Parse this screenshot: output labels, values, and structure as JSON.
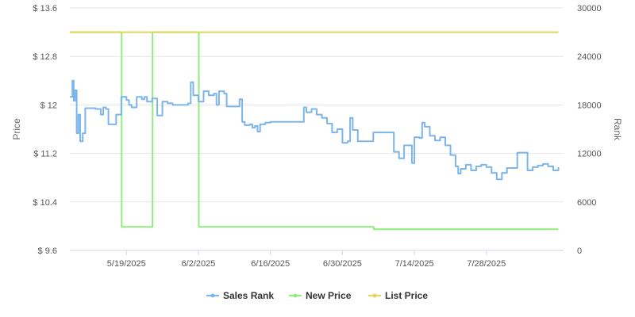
{
  "chart_data": {
    "type": "line",
    "x_type": "date",
    "x_ticks": [
      "5/19/2025",
      "6/2/2025",
      "6/16/2025",
      "6/30/2025",
      "7/14/2025",
      "7/28/2025"
    ],
    "x_range": [
      "2025-05-08",
      "2025-08-12"
    ],
    "y_left": {
      "title": "Price",
      "ticks": [
        "$ 9.6",
        "$ 10.4",
        "$ 11.2",
        "$ 12",
        "$ 12.8",
        "$ 13.6"
      ],
      "tick_values": [
        9.6,
        10.4,
        11.2,
        12,
        12.8,
        13.6
      ],
      "range": [
        9.6,
        13.6
      ]
    },
    "y_right": {
      "title": "Rank",
      "ticks": [
        "0",
        "6000",
        "12000",
        "18000",
        "24000",
        "30000"
      ],
      "tick_values": [
        0,
        6000,
        12000,
        18000,
        24000,
        30000
      ],
      "range": [
        0,
        30000
      ]
    },
    "grid": true,
    "legend_position": "bottom-center",
    "series": [
      {
        "name": "Sales Rank",
        "axis": "right",
        "color": "#7cb5ec",
        "step": true,
        "points": [
          [
            "2025-05-08",
            19000
          ],
          [
            "2025-05-08T12",
            21000
          ],
          [
            "2025-05-08T18",
            18500
          ],
          [
            "2025-05-09",
            19800
          ],
          [
            "2025-05-09T08",
            14500
          ],
          [
            "2025-05-09T16",
            16800
          ],
          [
            "2025-05-10",
            13500
          ],
          [
            "2025-05-10T12",
            14500
          ],
          [
            "2025-05-11",
            17600
          ],
          [
            "2025-05-13",
            17500
          ],
          [
            "2025-05-14",
            16800
          ],
          [
            "2025-05-14T12",
            17700
          ],
          [
            "2025-05-15",
            17500
          ],
          [
            "2025-05-15T12",
            15600
          ],
          [
            "2025-05-16",
            15600
          ],
          [
            "2025-05-17",
            16800
          ],
          [
            "2025-05-18",
            19000
          ],
          [
            "2025-05-19",
            18600
          ],
          [
            "2025-05-19T12",
            18000
          ],
          [
            "2025-05-20",
            17700
          ],
          [
            "2025-05-21",
            19000
          ],
          [
            "2025-05-22",
            18700
          ],
          [
            "2025-05-22T12",
            19000
          ],
          [
            "2025-05-23",
            18400
          ],
          [
            "2025-05-24",
            18800
          ],
          [
            "2025-05-25",
            16700
          ],
          [
            "2025-05-26",
            18400
          ],
          [
            "2025-05-27",
            18200
          ],
          [
            "2025-05-28",
            18000
          ],
          [
            "2025-05-30",
            18000
          ],
          [
            "2025-05-31",
            18200
          ],
          [
            "2025-05-31T12",
            20800
          ],
          [
            "2025-06-01",
            19200
          ],
          [
            "2025-06-02",
            18400
          ],
          [
            "2025-06-03",
            19700
          ],
          [
            "2025-06-04",
            19200
          ],
          [
            "2025-06-05",
            19400
          ],
          [
            "2025-06-05T12",
            18000
          ],
          [
            "2025-06-06",
            19700
          ],
          [
            "2025-06-07",
            19400
          ],
          [
            "2025-06-07T12",
            17800
          ],
          [
            "2025-06-10",
            18700
          ],
          [
            "2025-06-10T12",
            15900
          ],
          [
            "2025-06-11",
            15500
          ],
          [
            "2025-06-12",
            15600
          ],
          [
            "2025-06-12T12",
            15200
          ],
          [
            "2025-06-13",
            15400
          ],
          [
            "2025-06-13T12",
            14700
          ],
          [
            "2025-06-14",
            15600
          ],
          [
            "2025-06-15",
            15800
          ],
          [
            "2025-06-16",
            15900
          ],
          [
            "2025-06-22",
            15900
          ],
          [
            "2025-06-22T12",
            17700
          ],
          [
            "2025-06-23",
            17100
          ],
          [
            "2025-06-24",
            17500
          ],
          [
            "2025-06-25",
            16800
          ],
          [
            "2025-06-26",
            16400
          ],
          [
            "2025-06-27",
            15700
          ],
          [
            "2025-06-28",
            14600
          ],
          [
            "2025-06-29",
            15000
          ],
          [
            "2025-06-30",
            13300
          ],
          [
            "2025-07-01",
            13500
          ],
          [
            "2025-07-01T12",
            16400
          ],
          [
            "2025-07-02",
            14900
          ],
          [
            "2025-07-03",
            13500
          ],
          [
            "2025-07-05",
            13500
          ],
          [
            "2025-07-06",
            14600
          ],
          [
            "2025-07-09",
            14600
          ],
          [
            "2025-07-10",
            12200
          ],
          [
            "2025-07-11",
            11400
          ],
          [
            "2025-07-12",
            13000
          ],
          [
            "2025-07-13",
            13000
          ],
          [
            "2025-07-13T12",
            10800
          ],
          [
            "2025-07-14",
            14000
          ],
          [
            "2025-07-15",
            13900
          ],
          [
            "2025-07-15T12",
            15800
          ],
          [
            "2025-07-16",
            15300
          ],
          [
            "2025-07-17",
            14200
          ],
          [
            "2025-07-18",
            13600
          ],
          [
            "2025-07-19",
            14000
          ],
          [
            "2025-07-20",
            13000
          ],
          [
            "2025-07-21",
            11800
          ],
          [
            "2025-07-22",
            10400
          ],
          [
            "2025-07-22T12",
            9500
          ],
          [
            "2025-07-23",
            10100
          ],
          [
            "2025-07-24",
            10600
          ],
          [
            "2025-07-25",
            9900
          ],
          [
            "2025-07-26",
            10400
          ],
          [
            "2025-07-27",
            10600
          ],
          [
            "2025-07-28",
            10300
          ],
          [
            "2025-07-29",
            9600
          ],
          [
            "2025-07-30",
            8800
          ],
          [
            "2025-07-31",
            9600
          ],
          [
            "2025-08-01",
            10200
          ],
          [
            "2025-08-03",
            12100
          ],
          [
            "2025-08-05",
            9900
          ],
          [
            "2025-08-06",
            10300
          ],
          [
            "2025-08-07",
            10500
          ],
          [
            "2025-08-08",
            10700
          ],
          [
            "2025-08-09",
            10400
          ],
          [
            "2025-08-10",
            9900
          ],
          [
            "2025-08-11",
            10300
          ]
        ]
      },
      {
        "name": "New Price",
        "axis": "left",
        "color": "#90ed7d",
        "step": true,
        "points": [
          [
            "2025-05-08",
            13.2
          ],
          [
            "2025-05-18",
            13.2
          ],
          [
            "2025-05-18T02",
            9.99
          ],
          [
            "2025-05-24",
            9.99
          ],
          [
            "2025-05-24T02",
            13.2
          ],
          [
            "2025-06-02",
            13.2
          ],
          [
            "2025-06-02T02",
            9.99
          ],
          [
            "2025-07-06",
            9.99
          ],
          [
            "2025-07-06T02",
            9.95
          ],
          [
            "2025-08-11",
            9.95
          ]
        ]
      },
      {
        "name": "List Price",
        "axis": "left",
        "color": "#e4d354",
        "step": false,
        "points": [
          [
            "2025-05-08",
            13.2
          ],
          [
            "2025-08-11",
            13.2
          ]
        ]
      }
    ]
  }
}
